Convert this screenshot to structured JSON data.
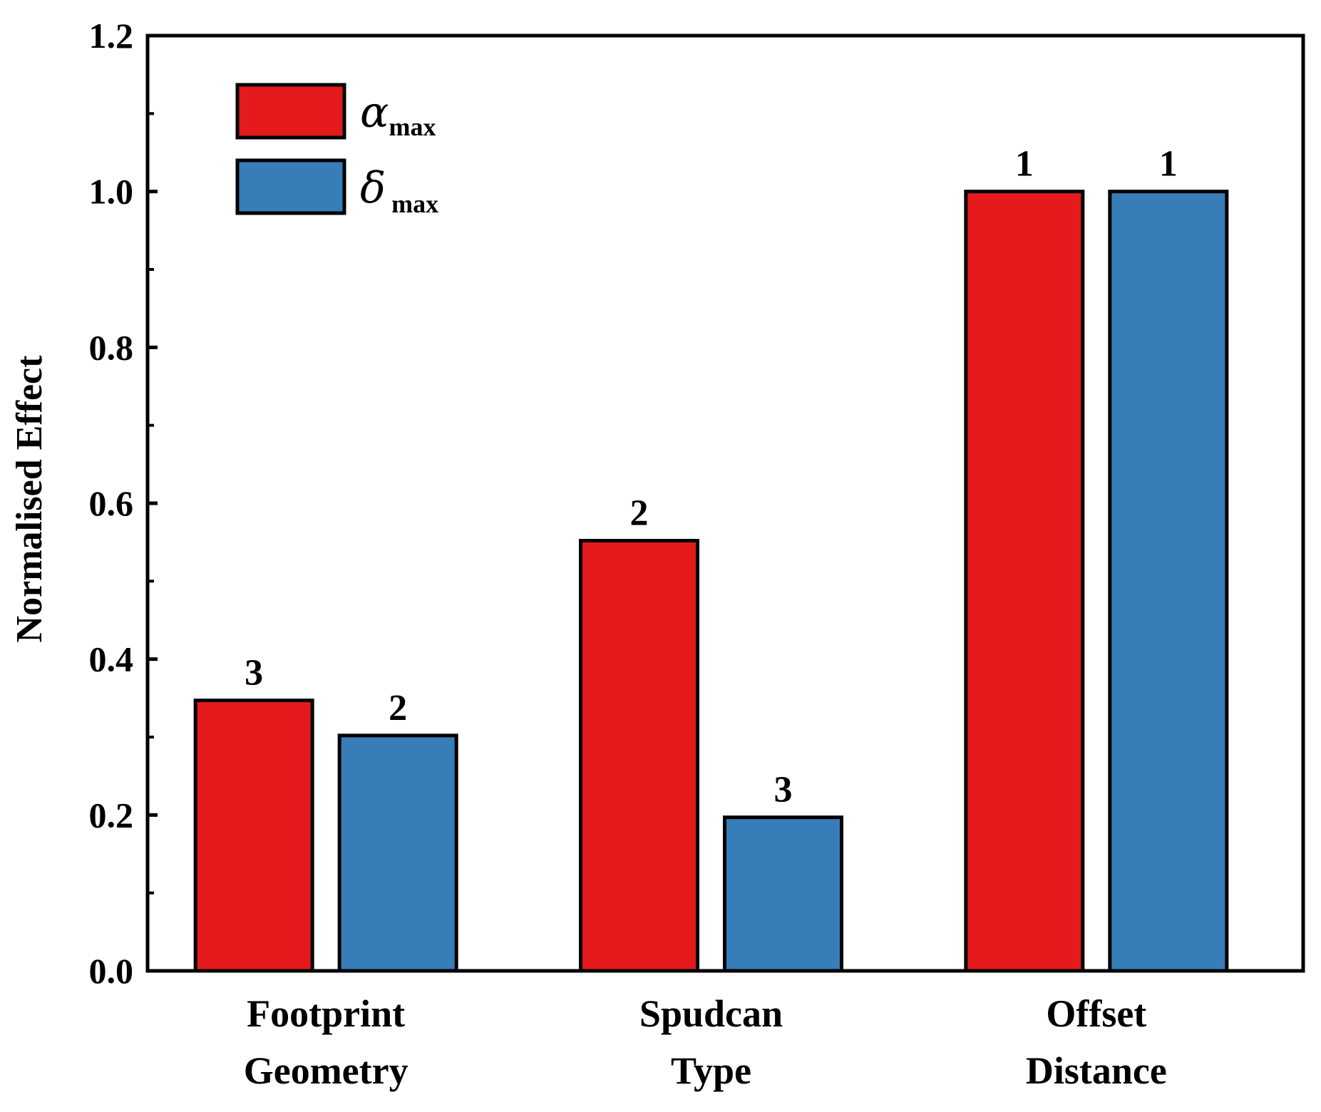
{
  "chart_data": {
    "type": "bar",
    "title": "",
    "xlabel": "",
    "ylabel": "Normalised Effect",
    "ylim": [
      0,
      1.2
    ],
    "yticks": [
      "0.0",
      "0.2",
      "0.4",
      "0.6",
      "0.8",
      "1.0",
      "1.2"
    ],
    "categories": [
      [
        "Footprint",
        "Geometry"
      ],
      [
        "Spudcan",
        "Type"
      ],
      [
        "Offset",
        "Distance"
      ]
    ],
    "series": [
      {
        "name": "α_max",
        "symbol": "α",
        "subscript": "max",
        "color": "#e41a1c",
        "values": [
          0.347,
          0.552,
          1.0
        ],
        "rank_labels": [
          "3",
          "2",
          "1"
        ]
      },
      {
        "name": "δ_max",
        "symbol": "δ",
        "subscript": "max",
        "color": "#377eb8",
        "values": [
          0.302,
          0.197,
          1.0
        ],
        "rank_labels": [
          "2",
          "3",
          "1"
        ]
      }
    ],
    "legend_position": "top-left"
  }
}
